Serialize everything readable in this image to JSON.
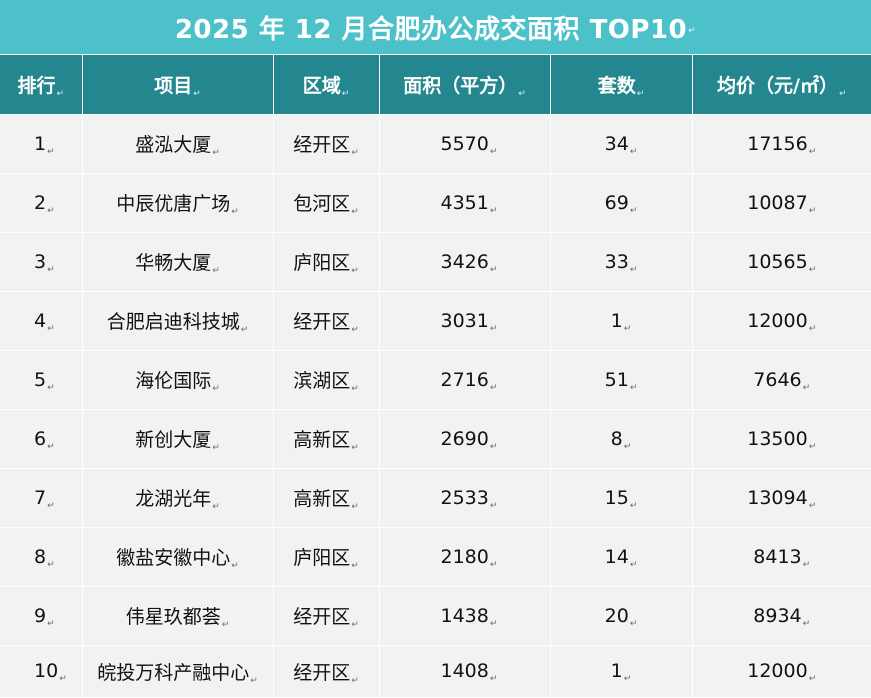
{
  "title": "2025 年 12 月合肥办公成交面积 TOP10",
  "paragraph_mark": "↵",
  "columns": {
    "rank": "排行",
    "project": "项目",
    "district": "区域",
    "area": "面积（平方）",
    "units": "套数",
    "avg_price": "均价（元/㎡）"
  },
  "rows": [
    {
      "rank": "1",
      "project": "盛泓大厦",
      "district": "经开区",
      "area": "5570",
      "units": "34",
      "avg_price": "17156"
    },
    {
      "rank": "2",
      "project": "中辰优唐广场",
      "district": "包河区",
      "area": "4351",
      "units": "69",
      "avg_price": "10087"
    },
    {
      "rank": "3",
      "project": "华畅大厦",
      "district": "庐阳区",
      "area": "3426",
      "units": "33",
      "avg_price": "10565"
    },
    {
      "rank": "4",
      "project": "合肥启迪科技城",
      "district": "经开区",
      "area": "3031",
      "units": "1",
      "avg_price": "12000"
    },
    {
      "rank": "5",
      "project": "海伦国际",
      "district": "滨湖区",
      "area": "2716",
      "units": "51",
      "avg_price": "7646"
    },
    {
      "rank": "6",
      "project": "新创大厦",
      "district": "高新区",
      "area": "2690",
      "units": "8",
      "avg_price": "13500"
    },
    {
      "rank": "7",
      "project": "龙湖光年",
      "district": "高新区",
      "area": "2533",
      "units": "15",
      "avg_price": "13094"
    },
    {
      "rank": "8",
      "project": "徽盐安徽中心",
      "district": "庐阳区",
      "area": "2180",
      "units": "14",
      "avg_price": "8413"
    },
    {
      "rank": "9",
      "project": "伟星玖都荟",
      "district": "经开区",
      "area": "1438",
      "units": "20",
      "avg_price": "8934"
    },
    {
      "rank": "10",
      "project": "皖投万科产融中心",
      "district": "经开区",
      "area": "1408",
      "units": "1",
      "avg_price": "12000"
    }
  ],
  "colors": {
    "title_bg": "#4dc1c9",
    "header_bg": "#24878f",
    "row_bg": "#f2f2f2",
    "text": "#111111"
  }
}
